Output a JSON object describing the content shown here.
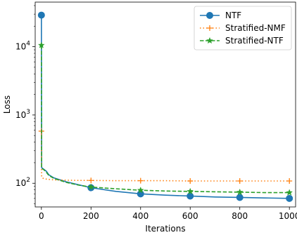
{
  "chart_data": {
    "type": "line",
    "title": "",
    "xlabel": "Iterations",
    "ylabel": "Loss",
    "yscale": "log",
    "xlim": [
      -25,
      1025
    ],
    "ylim": [
      45,
      45000
    ],
    "xticks": [
      0,
      200,
      400,
      600,
      800,
      1000
    ],
    "yticks": [
      {
        "value": 100,
        "base": "10",
        "exp": "2"
      },
      {
        "value": 1000,
        "base": "10",
        "exp": "3"
      },
      {
        "value": 10000,
        "base": "10",
        "exp": "4"
      }
    ],
    "grid": false,
    "legend_position": "top-right",
    "series": [
      {
        "name": "NTF",
        "color": "#1f77b4",
        "line_style": "solid",
        "marker": "circle",
        "x": [
          0,
          1,
          2,
          5,
          10,
          20,
          30,
          50,
          100,
          150,
          200,
          300,
          400,
          500,
          600,
          700,
          800,
          900,
          1000
        ],
        "y": [
          29000,
          170,
          168,
          165,
          160,
          150,
          133,
          120,
          105,
          95,
          86,
          76,
          70,
          67,
          65,
          63,
          62,
          61,
          60
        ],
        "marker_x": [
          0,
          200,
          400,
          600,
          800,
          1000
        ]
      },
      {
        "name": "Stratified-NMF",
        "color": "#ff7f0e",
        "line_style": "dotted",
        "marker": "plus",
        "x": [
          0,
          1,
          2,
          5,
          10,
          20,
          30,
          50,
          100,
          150,
          200,
          300,
          400,
          500,
          600,
          700,
          800,
          900,
          1000
        ],
        "y": [
          580,
          125,
          122,
          119,
          117,
          115,
          114,
          112,
          111,
          110,
          110,
          109,
          109,
          109,
          108,
          108,
          108,
          108,
          108
        ],
        "marker_x": [
          0,
          200,
          400,
          600,
          800,
          1000
        ]
      },
      {
        "name": "Stratified-NTF",
        "color": "#2ca02c",
        "line_style": "dashed",
        "marker": "star",
        "x": [
          0,
          1,
          2,
          5,
          10,
          20,
          30,
          50,
          100,
          150,
          200,
          300,
          400,
          500,
          600,
          700,
          800,
          900,
          1000
        ],
        "y": [
          10500,
          168,
          165,
          162,
          158,
          145,
          130,
          118,
          103,
          94,
          88,
          83,
          79,
          77,
          76,
          75,
          74,
          73,
          73
        ],
        "marker_x": [
          0,
          200,
          400,
          600,
          800,
          1000
        ]
      }
    ]
  }
}
